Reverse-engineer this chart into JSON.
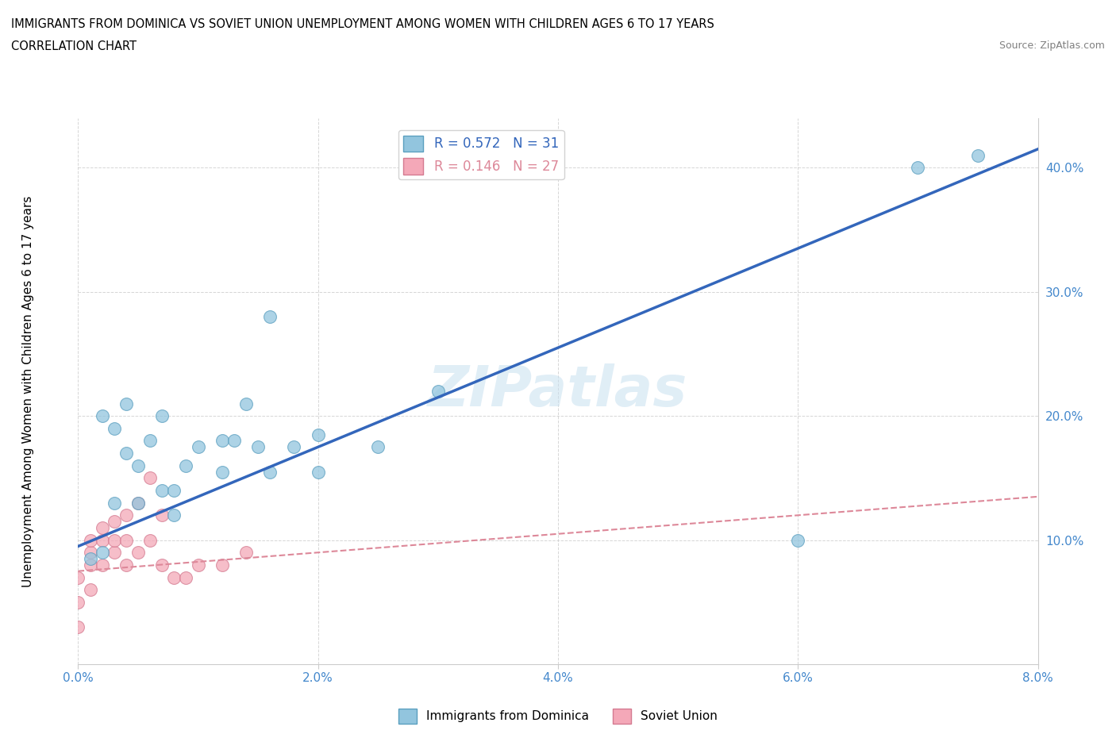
{
  "title_line1": "IMMIGRANTS FROM DOMINICA VS SOVIET UNION UNEMPLOYMENT AMONG WOMEN WITH CHILDREN AGES 6 TO 17 YEARS",
  "title_line2": "CORRELATION CHART",
  "source": "Source: ZipAtlas.com",
  "ylabel": "Unemployment Among Women with Children Ages 6 to 17 years",
  "xlim": [
    0.0,
    0.08
  ],
  "ylim": [
    0.0,
    0.44
  ],
  "xtick_labels": [
    "0.0%",
    "2.0%",
    "4.0%",
    "6.0%",
    "8.0%"
  ],
  "xtick_vals": [
    0.0,
    0.02,
    0.04,
    0.06,
    0.08
  ],
  "ytick_labels": [
    "10.0%",
    "20.0%",
    "30.0%",
    "40.0%"
  ],
  "ytick_vals": [
    0.1,
    0.2,
    0.3,
    0.4
  ],
  "dominica_color": "#92C5DE",
  "soviet_color": "#F4A8B8",
  "dominica_edge": "#5A9FBF",
  "soviet_edge": "#D47A90",
  "legend_r_dominica": "R = 0.572",
  "legend_n_dominica": "N = 31",
  "legend_r_soviet": "R = 0.146",
  "legend_n_soviet": "N = 27",
  "trend_dominica_color": "#3366BB",
  "trend_soviet_color": "#DD8899",
  "watermark": "ZIPatlas",
  "dominica_x": [
    0.001,
    0.002,
    0.002,
    0.003,
    0.003,
    0.004,
    0.004,
    0.005,
    0.005,
    0.006,
    0.007,
    0.007,
    0.008,
    0.008,
    0.009,
    0.01,
    0.012,
    0.013,
    0.014,
    0.015,
    0.016,
    0.018,
    0.02,
    0.025,
    0.012,
    0.016,
    0.02,
    0.03,
    0.06,
    0.07,
    0.075
  ],
  "dominica_y": [
    0.085,
    0.09,
    0.2,
    0.13,
    0.19,
    0.17,
    0.21,
    0.13,
    0.16,
    0.18,
    0.14,
    0.2,
    0.14,
    0.12,
    0.16,
    0.175,
    0.18,
    0.18,
    0.21,
    0.175,
    0.28,
    0.175,
    0.185,
    0.175,
    0.155,
    0.155,
    0.155,
    0.22,
    0.1,
    0.4,
    0.41
  ],
  "soviet_x": [
    0.0,
    0.0,
    0.0,
    0.001,
    0.001,
    0.001,
    0.001,
    0.002,
    0.002,
    0.002,
    0.003,
    0.003,
    0.003,
    0.004,
    0.004,
    0.004,
    0.005,
    0.005,
    0.006,
    0.006,
    0.007,
    0.007,
    0.008,
    0.009,
    0.01,
    0.012,
    0.014
  ],
  "soviet_y": [
    0.03,
    0.05,
    0.07,
    0.06,
    0.08,
    0.09,
    0.1,
    0.08,
    0.1,
    0.11,
    0.09,
    0.1,
    0.115,
    0.08,
    0.1,
    0.12,
    0.09,
    0.13,
    0.1,
    0.15,
    0.08,
    0.12,
    0.07,
    0.07,
    0.08,
    0.08,
    0.09
  ],
  "trend_dom_x0": 0.0,
  "trend_dom_y0": 0.095,
  "trend_dom_x1": 0.08,
  "trend_dom_y1": 0.415,
  "trend_sov_x0": 0.0,
  "trend_sov_y0": 0.075,
  "trend_sov_x1": 0.08,
  "trend_sov_y1": 0.135
}
